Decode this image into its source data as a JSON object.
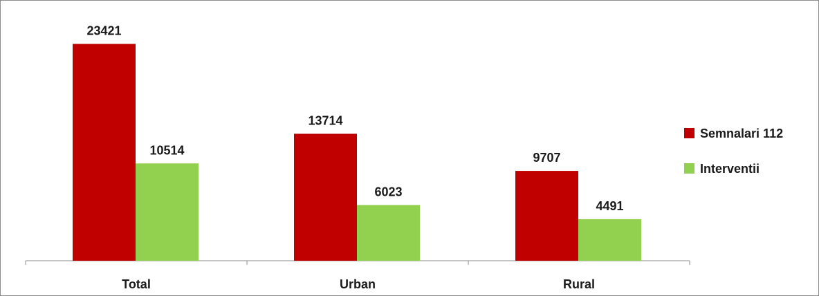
{
  "chart_data": {
    "type": "bar",
    "categories": [
      "Total",
      "Urban",
      "Rural"
    ],
    "series": [
      {
        "name": "Semnalari 112",
        "color": "#c00000",
        "values": [
          23421,
          13714,
          9707
        ]
      },
      {
        "name": "Interventii",
        "color": "#92d050",
        "values": [
          10514,
          6023,
          4491
        ]
      }
    ],
    "data_labels": [
      [
        "23421",
        "13714",
        "9707"
      ],
      [
        "10514",
        "6023",
        "4491"
      ]
    ],
    "ylim": [
      0,
      26000
    ],
    "grid": false,
    "legend_position": "right",
    "y_axis_visible": false
  }
}
